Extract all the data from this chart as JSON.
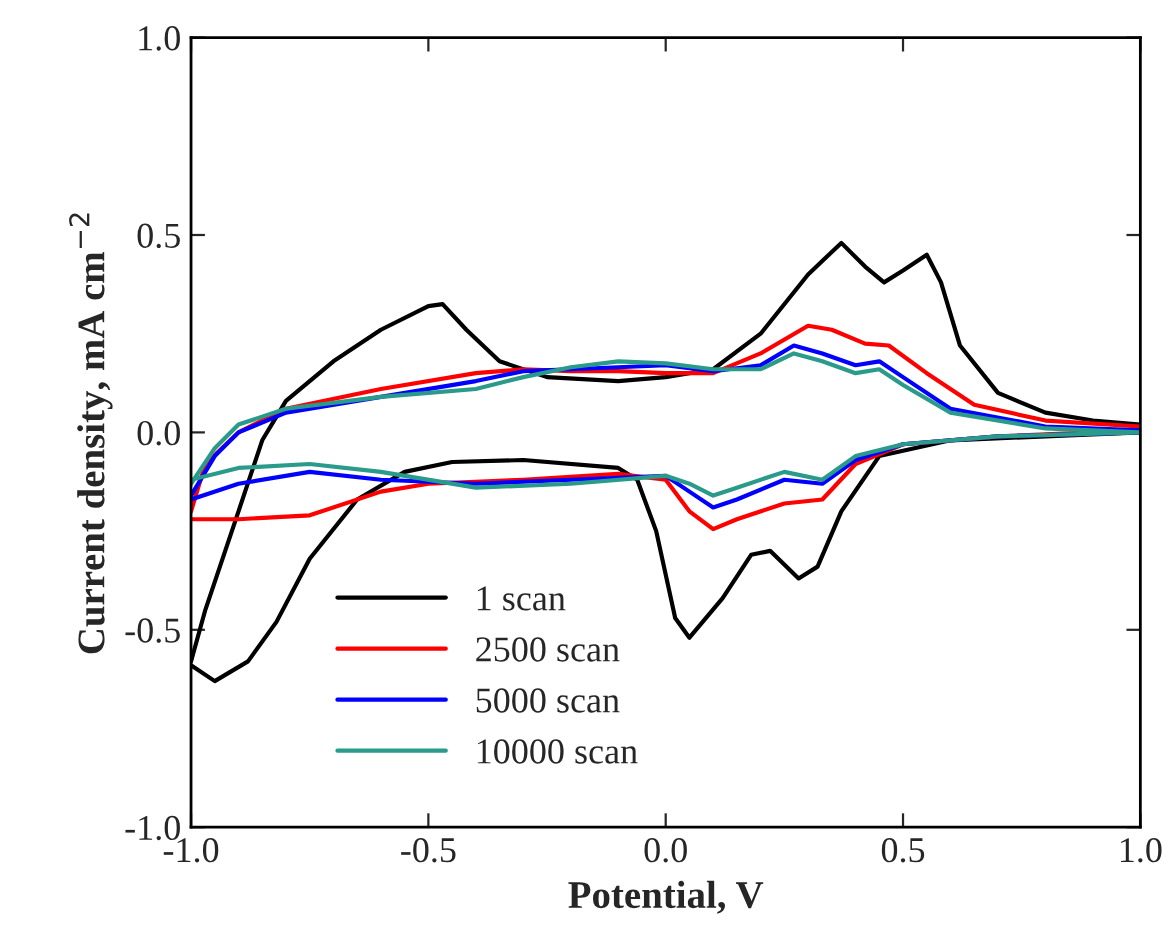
{
  "chart_data": {
    "type": "line",
    "xlabel": "Potential, V",
    "ylabel": "Current density, mA cm$^{−2}$",
    "xlim": [
      -1.0,
      1.0
    ],
    "ylim": [
      -1.0,
      1.0
    ],
    "xticks": [
      {
        "value": -1.0,
        "label": "-1.0"
      },
      {
        "value": -0.5,
        "label": "-0.5"
      },
      {
        "value": 0.0,
        "label": "0.0"
      },
      {
        "value": 0.5,
        "label": "0.5"
      },
      {
        "value": 1.0,
        "label": "1.0"
      }
    ],
    "yticks": [
      {
        "value": -1.0,
        "label": "-1.0"
      },
      {
        "value": -0.5,
        "label": "-0.5"
      },
      {
        "value": 0.0,
        "label": "0.0"
      },
      {
        "value": 0.5,
        "label": "0.5"
      },
      {
        "value": 1.0,
        "label": "1.0"
      }
    ],
    "grid": false,
    "legend": "bottom left",
    "marker": "none",
    "line_style": "solid",
    "series": [
      {
        "name": "1 scan",
        "color": "#000000",
        "x": [
          -1.0,
          -0.97,
          -0.9,
          -0.85,
          -0.8,
          -0.7,
          -0.6,
          -0.5,
          -0.47,
          -0.42,
          -0.35,
          -0.25,
          -0.1,
          0.0,
          0.1,
          0.2,
          0.3,
          0.37,
          0.42,
          0.46,
          0.5,
          0.55,
          0.58,
          0.62,
          0.7,
          0.8,
          0.9,
          1.0,
          1.0,
          0.8,
          0.6,
          0.45,
          0.37,
          0.32,
          0.28,
          0.22,
          0.18,
          0.12,
          0.05,
          0.02,
          -0.02,
          -0.06,
          -0.1,
          -0.3,
          -0.45,
          -0.55,
          -0.65,
          -0.75,
          -0.82,
          -0.88,
          -0.95,
          -1.0
        ],
        "values": [
          -0.58,
          -0.45,
          -0.2,
          -0.02,
          0.08,
          0.18,
          0.26,
          0.32,
          0.325,
          0.26,
          0.18,
          0.14,
          0.13,
          0.14,
          0.16,
          0.25,
          0.4,
          0.48,
          0.42,
          0.38,
          0.41,
          0.45,
          0.38,
          0.22,
          0.1,
          0.05,
          0.03,
          0.02,
          0.0,
          -0.01,
          -0.02,
          -0.06,
          -0.2,
          -0.34,
          -0.37,
          -0.3,
          -0.31,
          -0.42,
          -0.52,
          -0.47,
          -0.25,
          -0.12,
          -0.09,
          -0.07,
          -0.075,
          -0.1,
          -0.17,
          -0.32,
          -0.48,
          -0.58,
          -0.63,
          -0.59
        ]
      },
      {
        "name": "2500 scan",
        "color": "#ff0000",
        "x": [
          -1.0,
          -0.97,
          -0.9,
          -0.8,
          -0.6,
          -0.4,
          -0.3,
          -0.2,
          -0.1,
          0.0,
          0.1,
          0.2,
          0.3,
          0.35,
          0.42,
          0.47,
          0.55,
          0.65,
          0.8,
          1.0,
          1.0,
          0.7,
          0.5,
          0.4,
          0.33,
          0.25,
          0.15,
          0.1,
          0.05,
          0.0,
          -0.1,
          -0.3,
          -0.5,
          -0.6,
          -0.75,
          -0.9,
          -1.0
        ],
        "values": [
          -0.2,
          -0.08,
          0.0,
          0.06,
          0.11,
          0.15,
          0.16,
          0.155,
          0.155,
          0.15,
          0.15,
          0.2,
          0.27,
          0.26,
          0.225,
          0.22,
          0.15,
          0.07,
          0.03,
          0.015,
          0.005,
          -0.01,
          -0.03,
          -0.08,
          -0.17,
          -0.18,
          -0.22,
          -0.245,
          -0.2,
          -0.12,
          -0.105,
          -0.12,
          -0.13,
          -0.15,
          -0.21,
          -0.22,
          -0.22
        ]
      },
      {
        "name": "5000 scan",
        "color": "#0000ff",
        "x": [
          -1.0,
          -0.95,
          -0.9,
          -0.8,
          -0.6,
          -0.4,
          -0.3,
          -0.2,
          -0.1,
          0.0,
          0.1,
          0.2,
          0.27,
          0.33,
          0.4,
          0.45,
          0.5,
          0.6,
          0.8,
          1.0,
          1.0,
          0.7,
          0.5,
          0.4,
          0.33,
          0.25,
          0.15,
          0.1,
          0.05,
          0.0,
          -0.2,
          -0.4,
          -0.6,
          -0.75,
          -0.9,
          -1.0
        ],
        "values": [
          -0.16,
          -0.06,
          0.0,
          0.05,
          0.09,
          0.13,
          0.155,
          0.16,
          0.165,
          0.17,
          0.155,
          0.17,
          0.22,
          0.2,
          0.17,
          0.18,
          0.14,
          0.06,
          0.015,
          0.005,
          0.0,
          -0.01,
          -0.03,
          -0.07,
          -0.13,
          -0.12,
          -0.17,
          -0.19,
          -0.15,
          -0.11,
          -0.12,
          -0.13,
          -0.12,
          -0.1,
          -0.13,
          -0.17
        ]
      },
      {
        "name": "10000 scan",
        "color": "#2a9a8a",
        "x": [
          -1.0,
          -0.95,
          -0.9,
          -0.8,
          -0.6,
          -0.4,
          -0.3,
          -0.2,
          -0.1,
          0.0,
          0.1,
          0.2,
          0.27,
          0.33,
          0.4,
          0.45,
          0.5,
          0.6,
          0.8,
          1.0,
          1.0,
          0.7,
          0.5,
          0.4,
          0.33,
          0.25,
          0.15,
          0.1,
          0.05,
          0.0,
          -0.2,
          -0.4,
          -0.6,
          -0.75,
          -0.9,
          -1.0
        ],
        "values": [
          -0.13,
          -0.04,
          0.02,
          0.06,
          0.09,
          0.11,
          0.14,
          0.165,
          0.18,
          0.175,
          0.16,
          0.16,
          0.2,
          0.18,
          0.15,
          0.16,
          0.12,
          0.05,
          0.01,
          0.0,
          0.0,
          -0.01,
          -0.03,
          -0.06,
          -0.12,
          -0.1,
          -0.14,
          -0.16,
          -0.13,
          -0.11,
          -0.13,
          -0.14,
          -0.1,
          -0.08,
          -0.09,
          -0.12
        ]
      }
    ]
  }
}
